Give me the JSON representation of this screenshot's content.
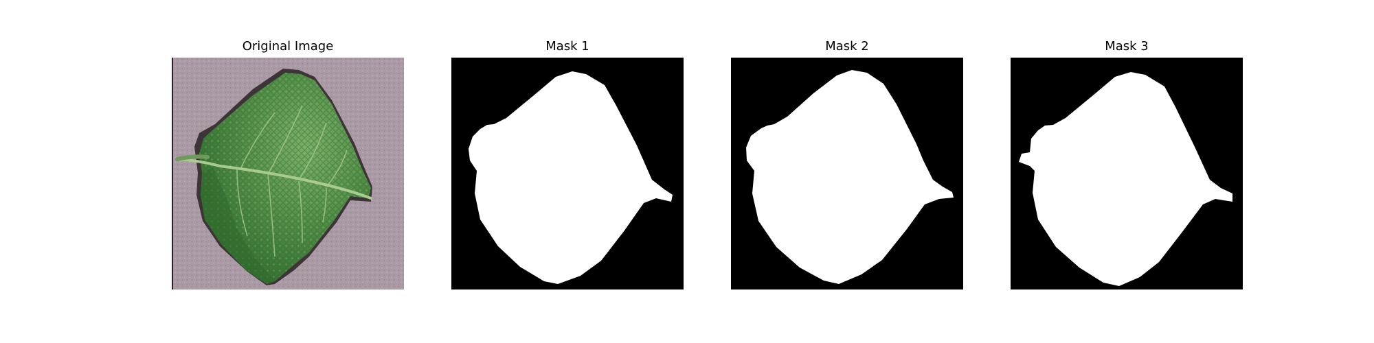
{
  "figure": {
    "panels": [
      {
        "title": "Original Image",
        "kind": "photo"
      },
      {
        "title": "Mask 1",
        "kind": "mask"
      },
      {
        "title": "Mask 2",
        "kind": "mask"
      },
      {
        "title": "Mask 3",
        "kind": "mask"
      }
    ],
    "colors": {
      "background": "#ffffff",
      "mask_background": "#000000",
      "mask_foreground": "#ffffff",
      "photo_background": "#aa9aa6",
      "leaf_dark": "#2f6a2c",
      "leaf_mid": "#4e8a45",
      "leaf_light": "#79ad67",
      "vein": "#a9cb8f",
      "shadow": "#2a2225"
    }
  }
}
